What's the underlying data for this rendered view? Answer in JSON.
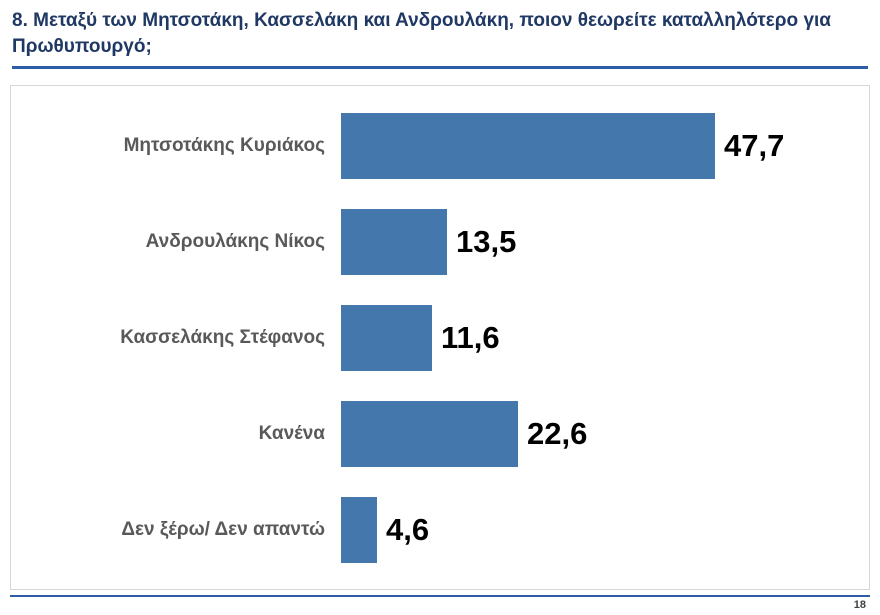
{
  "header": {
    "title": "8. Μεταξύ των Μητσοτάκη, Κασσελάκη και Ανδρουλάκη, ποιον θεωρείτε καταλληλότερο για Πρωθυπουργό;"
  },
  "footer": {
    "page_number": "18"
  },
  "chart_data": {
    "type": "bar",
    "orientation": "horizontal",
    "title": "8. Μεταξύ των Μητσοτάκη, Κασσελάκη και Ανδρουλάκη, ποιον θεωρείτε καταλληλότερο για Πρωθυπουργό;",
    "categories": [
      "Μητσοτάκης Κυριάκος",
      "Ανδρουλάκης Νίκος",
      "Κασσελάκης Στέφανος",
      "Κανένα",
      "Δεν ξέρω/ Δεν απαντώ"
    ],
    "values": [
      47.7,
      13.5,
      11.6,
      22.6,
      4.6
    ],
    "value_labels": [
      "47,7",
      "13,5",
      "11,6",
      "22,6",
      "4,6"
    ],
    "unit": "percent",
    "xlim": [
      0,
      60
    ],
    "grid": false,
    "legend": false,
    "axes_visible": false,
    "bar_color": "#4478AD",
    "category_label_color": "#595959",
    "value_label_color": "#000000",
    "title_color": "#1F3864",
    "rule_color": "#2E5DA6"
  }
}
